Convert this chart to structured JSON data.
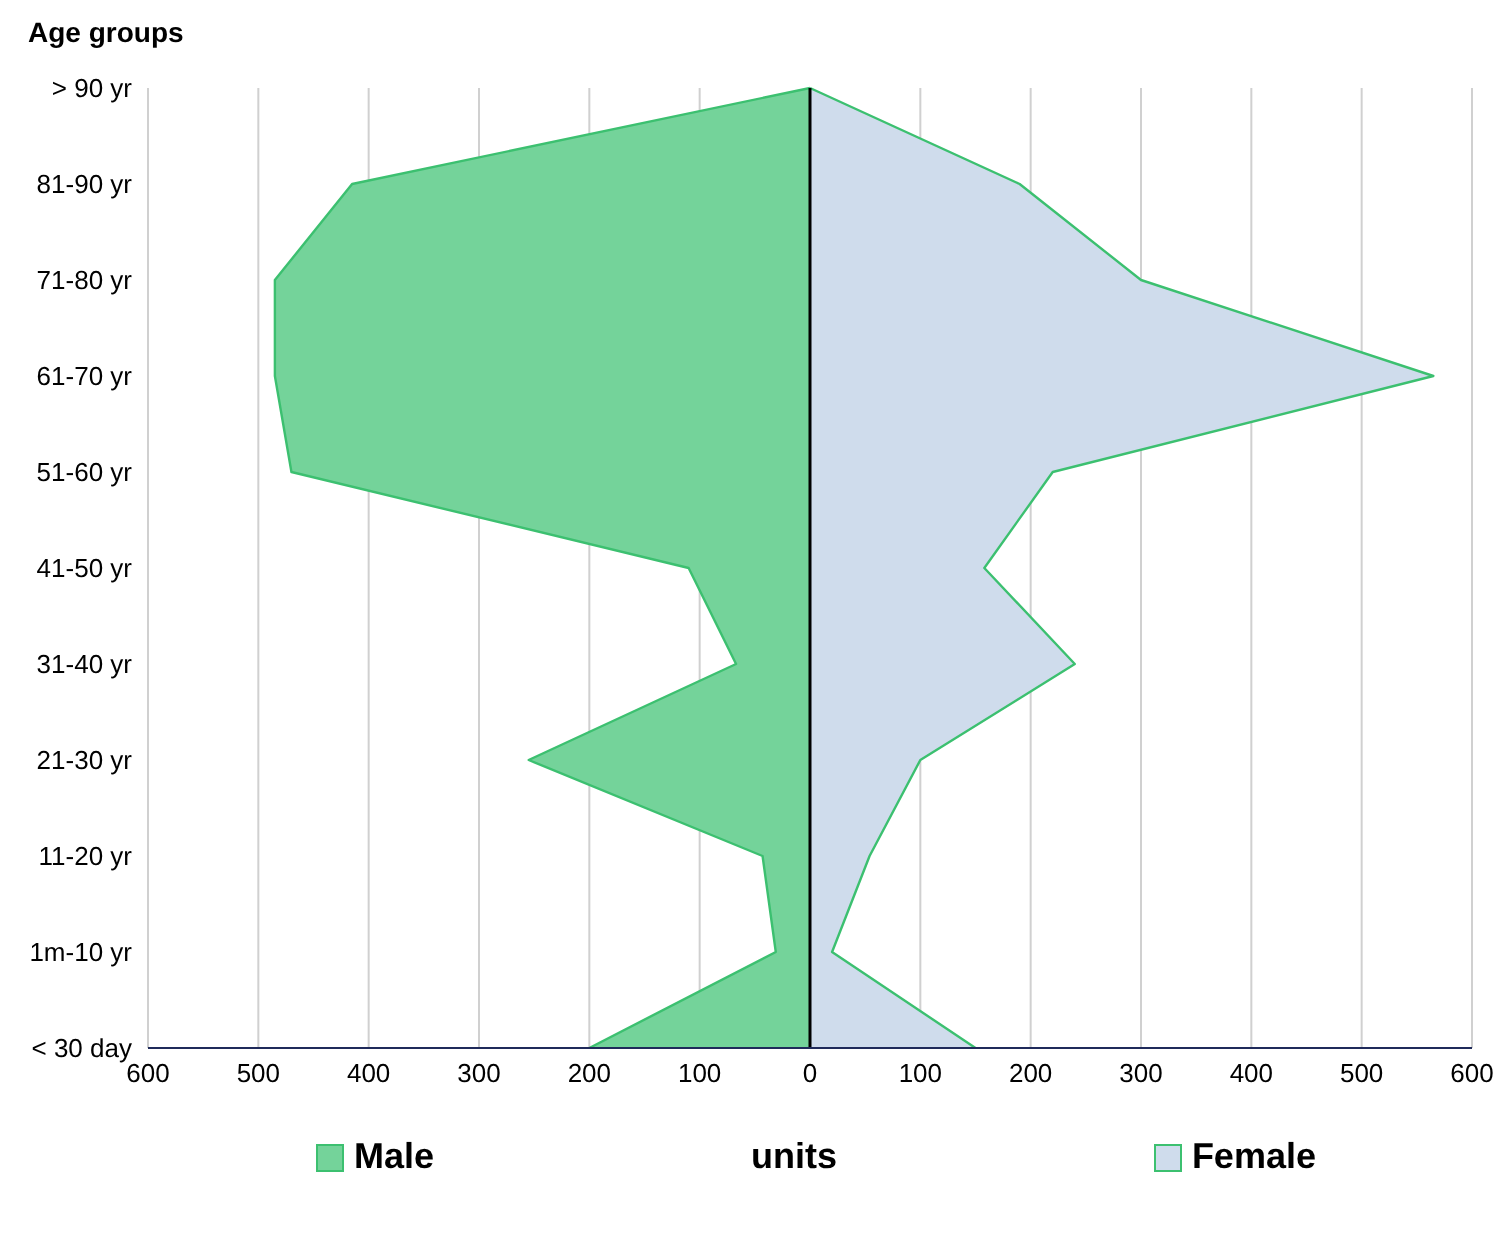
{
  "chart_data": {
    "type": "area",
    "orientation": "horizontal",
    "ylabel": "Age groups",
    "xlabel": "units",
    "categories": [
      "> 90 yr",
      "81-90 yr",
      "71-80 yr",
      "61-70 yr",
      "51-60 yr",
      "41-50 yr",
      "31-40 yr",
      "21-30 yr",
      "11-20 yr",
      "1m-10 yr",
      "< 30 day"
    ],
    "series": [
      {
        "name": "Male",
        "color": "#74d39a",
        "values": [
          0,
          -415,
          -485,
          -485,
          -470,
          -110,
          -67,
          -255,
          -43,
          -31,
          -200
        ]
      },
      {
        "name": "Female",
        "color": "#cfdcec",
        "values": [
          0,
          190,
          300,
          565,
          220,
          158,
          240,
          100,
          54,
          20,
          150
        ]
      }
    ],
    "xlim": [
      -600,
      600
    ],
    "xticks": [
      {
        "value": -600,
        "label": "600"
      },
      {
        "value": -500,
        "label": "500"
      },
      {
        "value": -400,
        "label": "400"
      },
      {
        "value": -300,
        "label": "300"
      },
      {
        "value": -200,
        "label": "200"
      },
      {
        "value": -100,
        "label": "100"
      },
      0,
      100,
      200,
      300,
      400,
      500,
      600
    ],
    "ref_lines": [
      {
        "axis": "x",
        "value": 0,
        "label": null,
        "color": "#000000"
      }
    ],
    "grid": "x",
    "legend": "bottom"
  }
}
